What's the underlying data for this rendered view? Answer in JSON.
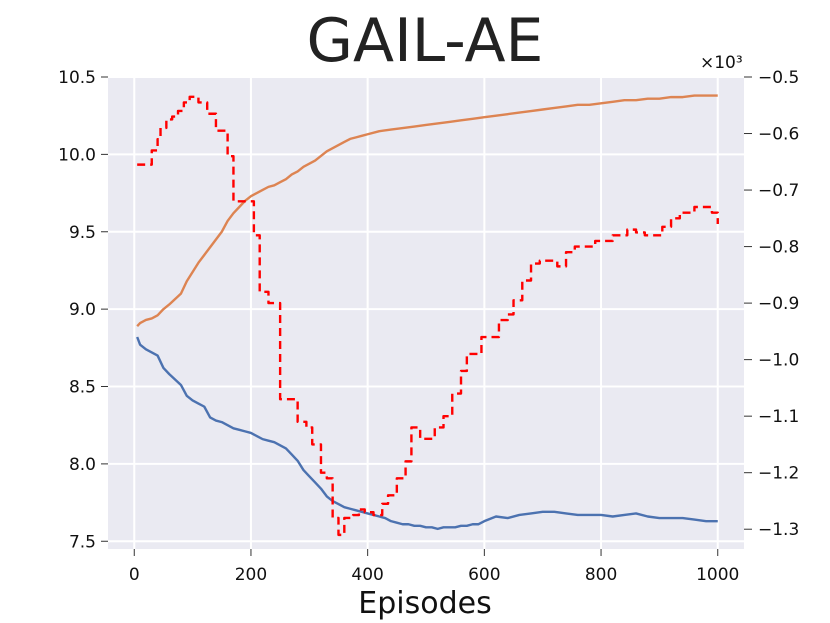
{
  "title": "GAIL-AE",
  "chart_data": {
    "type": "line",
    "title": "GAIL-AE",
    "xlabel": "Episodes",
    "ylabel": "",
    "ylabel_right": "",
    "grid": true,
    "x_ticks": [
      0,
      200,
      400,
      600,
      800,
      1000
    ],
    "y_ticks_left": [
      "7.5",
      "8.0",
      "8.5",
      "9.0",
      "9.5",
      "10.0",
      "10.5"
    ],
    "y_ticks_right": [
      "−1.3",
      "−1.2",
      "−1.1",
      "−1.0",
      "−0.9",
      "−0.8",
      "−0.7",
      "−0.6",
      "−0.5"
    ],
    "right_axis_multiplier": "×10³",
    "xlim": [
      -45,
      1045
    ],
    "ylim_left": [
      7.45,
      10.5
    ],
    "ylim_right": [
      -1.335,
      -0.5
    ],
    "series": [
      {
        "axis": "left",
        "color": "#4c72b0",
        "style": "solid",
        "x": [
          5,
          10,
          20,
          30,
          40,
          50,
          60,
          80,
          90,
          100,
          110,
          120,
          130,
          140,
          150,
          160,
          170,
          180,
          190,
          200,
          210,
          220,
          230,
          240,
          250,
          260,
          270,
          280,
          290,
          300,
          310,
          320,
          330,
          340,
          350,
          360,
          370,
          380,
          390,
          400,
          410,
          420,
          430,
          440,
          450,
          460,
          470,
          480,
          490,
          500,
          510,
          520,
          530,
          540,
          550,
          560,
          570,
          580,
          590,
          600,
          620,
          640,
          660,
          680,
          700,
          720,
          740,
          760,
          780,
          800,
          820,
          840,
          860,
          880,
          900,
          920,
          940,
          960,
          980,
          1000
        ],
        "y": [
          8.82,
          8.77,
          8.74,
          8.72,
          8.7,
          8.62,
          8.58,
          8.51,
          8.44,
          8.41,
          8.39,
          8.37,
          8.3,
          8.28,
          8.27,
          8.25,
          8.23,
          8.22,
          8.21,
          8.2,
          8.18,
          8.16,
          8.15,
          8.14,
          8.12,
          8.1,
          8.06,
          8.02,
          7.96,
          7.92,
          7.88,
          7.84,
          7.79,
          7.76,
          7.74,
          7.72,
          7.71,
          7.7,
          7.69,
          7.68,
          7.67,
          7.66,
          7.65,
          7.63,
          7.62,
          7.61,
          7.61,
          7.6,
          7.6,
          7.59,
          7.59,
          7.58,
          7.59,
          7.59,
          7.59,
          7.6,
          7.6,
          7.61,
          7.61,
          7.63,
          7.66,
          7.65,
          7.67,
          7.68,
          7.69,
          7.69,
          7.68,
          7.67,
          7.67,
          7.67,
          7.66,
          7.67,
          7.68,
          7.66,
          7.65,
          7.65,
          7.65,
          7.64,
          7.63,
          7.63
        ]
      },
      {
        "axis": "left",
        "color": "#dd8452",
        "style": "solid",
        "x": [
          5,
          10,
          20,
          30,
          40,
          50,
          60,
          80,
          90,
          100,
          110,
          120,
          130,
          140,
          150,
          160,
          170,
          180,
          190,
          200,
          210,
          220,
          230,
          240,
          250,
          260,
          270,
          280,
          290,
          300,
          310,
          320,
          330,
          340,
          350,
          360,
          370,
          380,
          390,
          400,
          420,
          440,
          460,
          480,
          500,
          520,
          540,
          560,
          580,
          600,
          620,
          640,
          660,
          680,
          700,
          720,
          740,
          760,
          780,
          800,
          820,
          840,
          860,
          880,
          900,
          920,
          940,
          960,
          980,
          1000
        ],
        "y": [
          8.89,
          8.91,
          8.93,
          8.94,
          8.96,
          9.0,
          9.03,
          9.1,
          9.18,
          9.24,
          9.3,
          9.35,
          9.4,
          9.45,
          9.5,
          9.57,
          9.62,
          9.66,
          9.7,
          9.73,
          9.75,
          9.77,
          9.79,
          9.8,
          9.82,
          9.84,
          9.87,
          9.89,
          9.92,
          9.94,
          9.96,
          9.99,
          10.02,
          10.04,
          10.06,
          10.08,
          10.1,
          10.11,
          10.12,
          10.13,
          10.15,
          10.16,
          10.17,
          10.18,
          10.19,
          10.2,
          10.21,
          10.22,
          10.23,
          10.24,
          10.25,
          10.26,
          10.27,
          10.28,
          10.29,
          10.3,
          10.31,
          10.32,
          10.32,
          10.33,
          10.34,
          10.35,
          10.35,
          10.36,
          10.36,
          10.37,
          10.37,
          10.38,
          10.38,
          10.38
        ]
      },
      {
        "axis": "right",
        "color": "#ff0000",
        "style": "dashed",
        "x": [
          5,
          25,
          30,
          40,
          45,
          55,
          65,
          75,
          85,
          95,
          110,
          125,
          140,
          160,
          170,
          190,
          205,
          215,
          230,
          250,
          265,
          280,
          295,
          305,
          320,
          330,
          340,
          350,
          360,
          375,
          385,
          395,
          410,
          425,
          435,
          450,
          465,
          475,
          490,
          505,
          515,
          530,
          545,
          560,
          570,
          585,
          595,
          610,
          625,
          640,
          650,
          665,
          680,
          695,
          710,
          725,
          740,
          755,
          770,
          780,
          790,
          810,
          820,
          830,
          845,
          860,
          875,
          890,
          905,
          920,
          935,
          950,
          960,
          975,
          990,
          1000
        ],
        "y": [
          -0.655,
          -0.655,
          -0.63,
          -0.61,
          -0.59,
          -0.575,
          -0.57,
          -0.56,
          -0.545,
          -0.535,
          -0.545,
          -0.565,
          -0.595,
          -0.64,
          -0.72,
          -0.72,
          -0.78,
          -0.88,
          -0.9,
          -1.07,
          -1.07,
          -1.11,
          -1.12,
          -1.15,
          -1.2,
          -1.21,
          -1.28,
          -1.31,
          -1.28,
          -1.275,
          -1.265,
          -1.27,
          -1.275,
          -1.255,
          -1.24,
          -1.21,
          -1.18,
          -1.12,
          -1.14,
          -1.14,
          -1.12,
          -1.1,
          -1.06,
          -1.02,
          -0.99,
          -0.99,
          -0.96,
          -0.96,
          -0.93,
          -0.92,
          -0.895,
          -0.86,
          -0.83,
          -0.825,
          -0.825,
          -0.835,
          -0.81,
          -0.8,
          -0.8,
          -0.8,
          -0.79,
          -0.79,
          -0.78,
          -0.78,
          -0.77,
          -0.775,
          -0.78,
          -0.78,
          -0.765,
          -0.75,
          -0.74,
          -0.74,
          -0.73,
          -0.73,
          -0.74,
          -0.76
        ]
      }
    ]
  }
}
